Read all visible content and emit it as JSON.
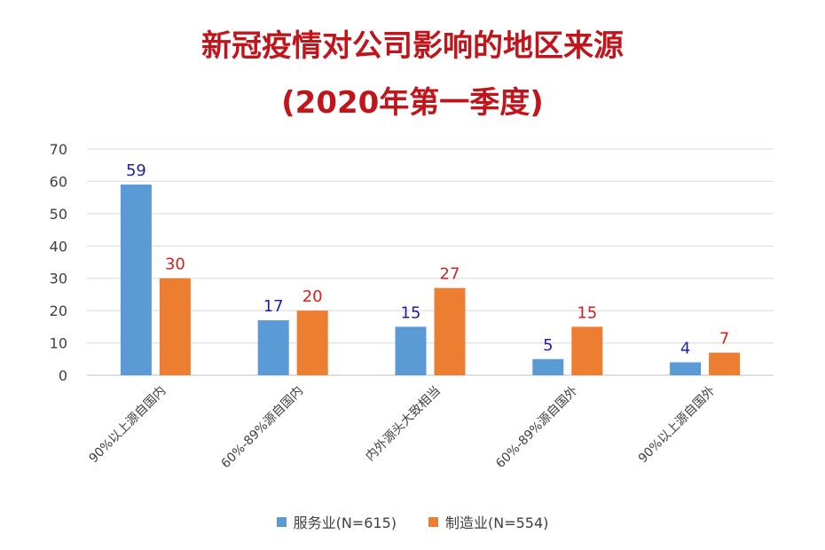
{
  "title": {
    "line1": "新冠疫情对公司影响的地区来源",
    "line2": "(2020年第一季度)"
  },
  "colors": {
    "title": "#c0151b",
    "service_bar": "#5b9bd5",
    "manufacturing_bar": "#ed7d31",
    "service_label": "#1f1fa8",
    "manufacturing_label": "#d42020",
    "grid": "#d9d9d9",
    "axis": "#bfbfbf"
  },
  "legend": [
    {
      "label": "服务业(N=615)",
      "color": "#5b9bd5"
    },
    {
      "label": "制造业(N=554)",
      "color": "#ed7d31"
    }
  ],
  "chart_data": {
    "type": "bar",
    "title": "新冠疫情对公司影响的地区来源 (2020年第一季度)",
    "categories": [
      "90%以上源自国内",
      "60%-89%源自国内",
      "内外源头大致相当",
      "60%-89%源自国外",
      "90%以上源自国外"
    ],
    "series": [
      {
        "name": "服务业(N=615)",
        "values": [
          59,
          17,
          15,
          5,
          4
        ],
        "color": "#5b9bd5",
        "label_color": "#1f1fa8"
      },
      {
        "name": "制造业(N=554)",
        "values": [
          30,
          20,
          27,
          15,
          7
        ],
        "color": "#ed7d31",
        "label_color": "#d42020"
      }
    ],
    "ylim": [
      0,
      70
    ],
    "yticks": [
      0,
      10,
      20,
      30,
      40,
      50,
      60,
      70
    ],
    "grid": true,
    "legend_position": "bottom",
    "data_labels": true,
    "xlabel": "",
    "ylabel": ""
  }
}
